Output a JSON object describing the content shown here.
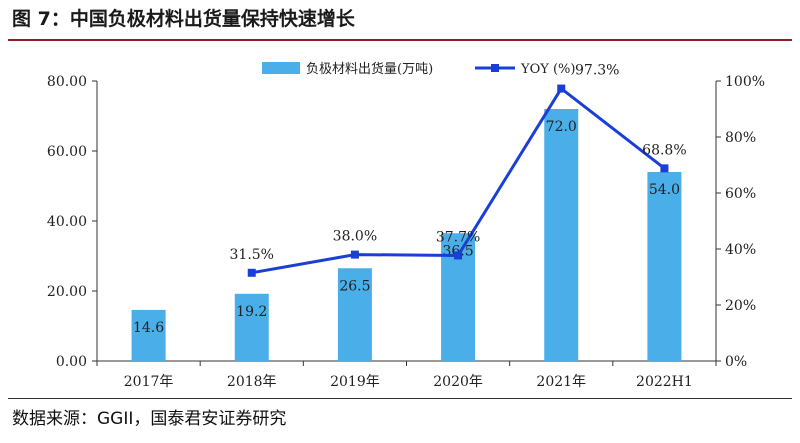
{
  "figure": {
    "title": "图 7：中国负极材料出货量保持快速增长",
    "source": "数据来源：GGII，国泰君安证券研究"
  },
  "chart_data": {
    "type": "bar+line",
    "categories": [
      "2017年",
      "2018年",
      "2019年",
      "2020年",
      "2021年",
      "2022H1"
    ],
    "series": [
      {
        "name": "负极材料出货量(万吨)",
        "type": "bar",
        "axis": "left",
        "color": "#4aaee8",
        "values": [
          14.6,
          19.2,
          26.5,
          36.5,
          72.0,
          54.0
        ],
        "labels": [
          "14.6",
          "19.2",
          "26.5",
          "36.5",
          "72.0",
          "54.0"
        ]
      },
      {
        "name": "YOY (%)",
        "type": "line",
        "axis": "right",
        "color": "#1a3fd6",
        "values": [
          null,
          31.5,
          38.0,
          37.7,
          97.3,
          68.8
        ],
        "labels": [
          "",
          "31.5%",
          "38.0%",
          "37.7%",
          "97.3%",
          "68.8%"
        ]
      }
    ],
    "y_left": {
      "min": 0,
      "max": 80,
      "ticks": [
        "0.00",
        "20.00",
        "40.00",
        "60.00",
        "80.00"
      ]
    },
    "y_right": {
      "min": 0,
      "max": 100,
      "ticks": [
        "0%",
        "20%",
        "40%",
        "60%",
        "80%",
        "100%"
      ]
    },
    "legend_position": "top"
  }
}
